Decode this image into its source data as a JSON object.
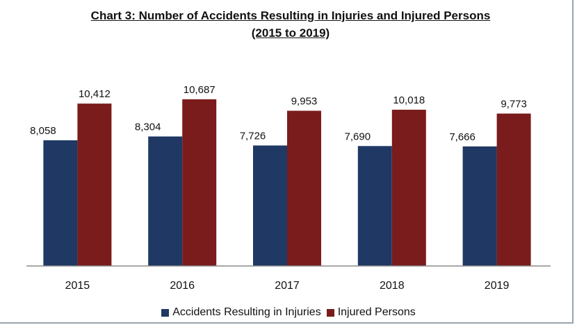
{
  "colors": {
    "accidents": "#1F3864",
    "injured": "#7A1C1C",
    "axis": "#8c8c8c"
  },
  "chart_data": {
    "type": "bar",
    "title": "Chart 3: Number of Accidents Resulting in Injuries and Injured Persons",
    "subtitle": "(2015 to 2019)",
    "categories": [
      "2015",
      "2016",
      "2017",
      "2018",
      "2019"
    ],
    "series": [
      {
        "name": "Accidents Resulting in Injuries",
        "values": [
          8058,
          8304,
          7726,
          7690,
          7666
        ],
        "labels": [
          "8,058",
          "8,304",
          "7,726",
          "7,690",
          "7,666"
        ]
      },
      {
        "name": "Injured Persons",
        "values": [
          10412,
          10687,
          9953,
          10018,
          9773
        ],
        "labels": [
          "10,412",
          "10,687",
          "9,953",
          "10,018",
          "9,773"
        ]
      }
    ],
    "ylim": [
      0,
      10687
    ],
    "legend_position": "bottom",
    "grid": false
  }
}
